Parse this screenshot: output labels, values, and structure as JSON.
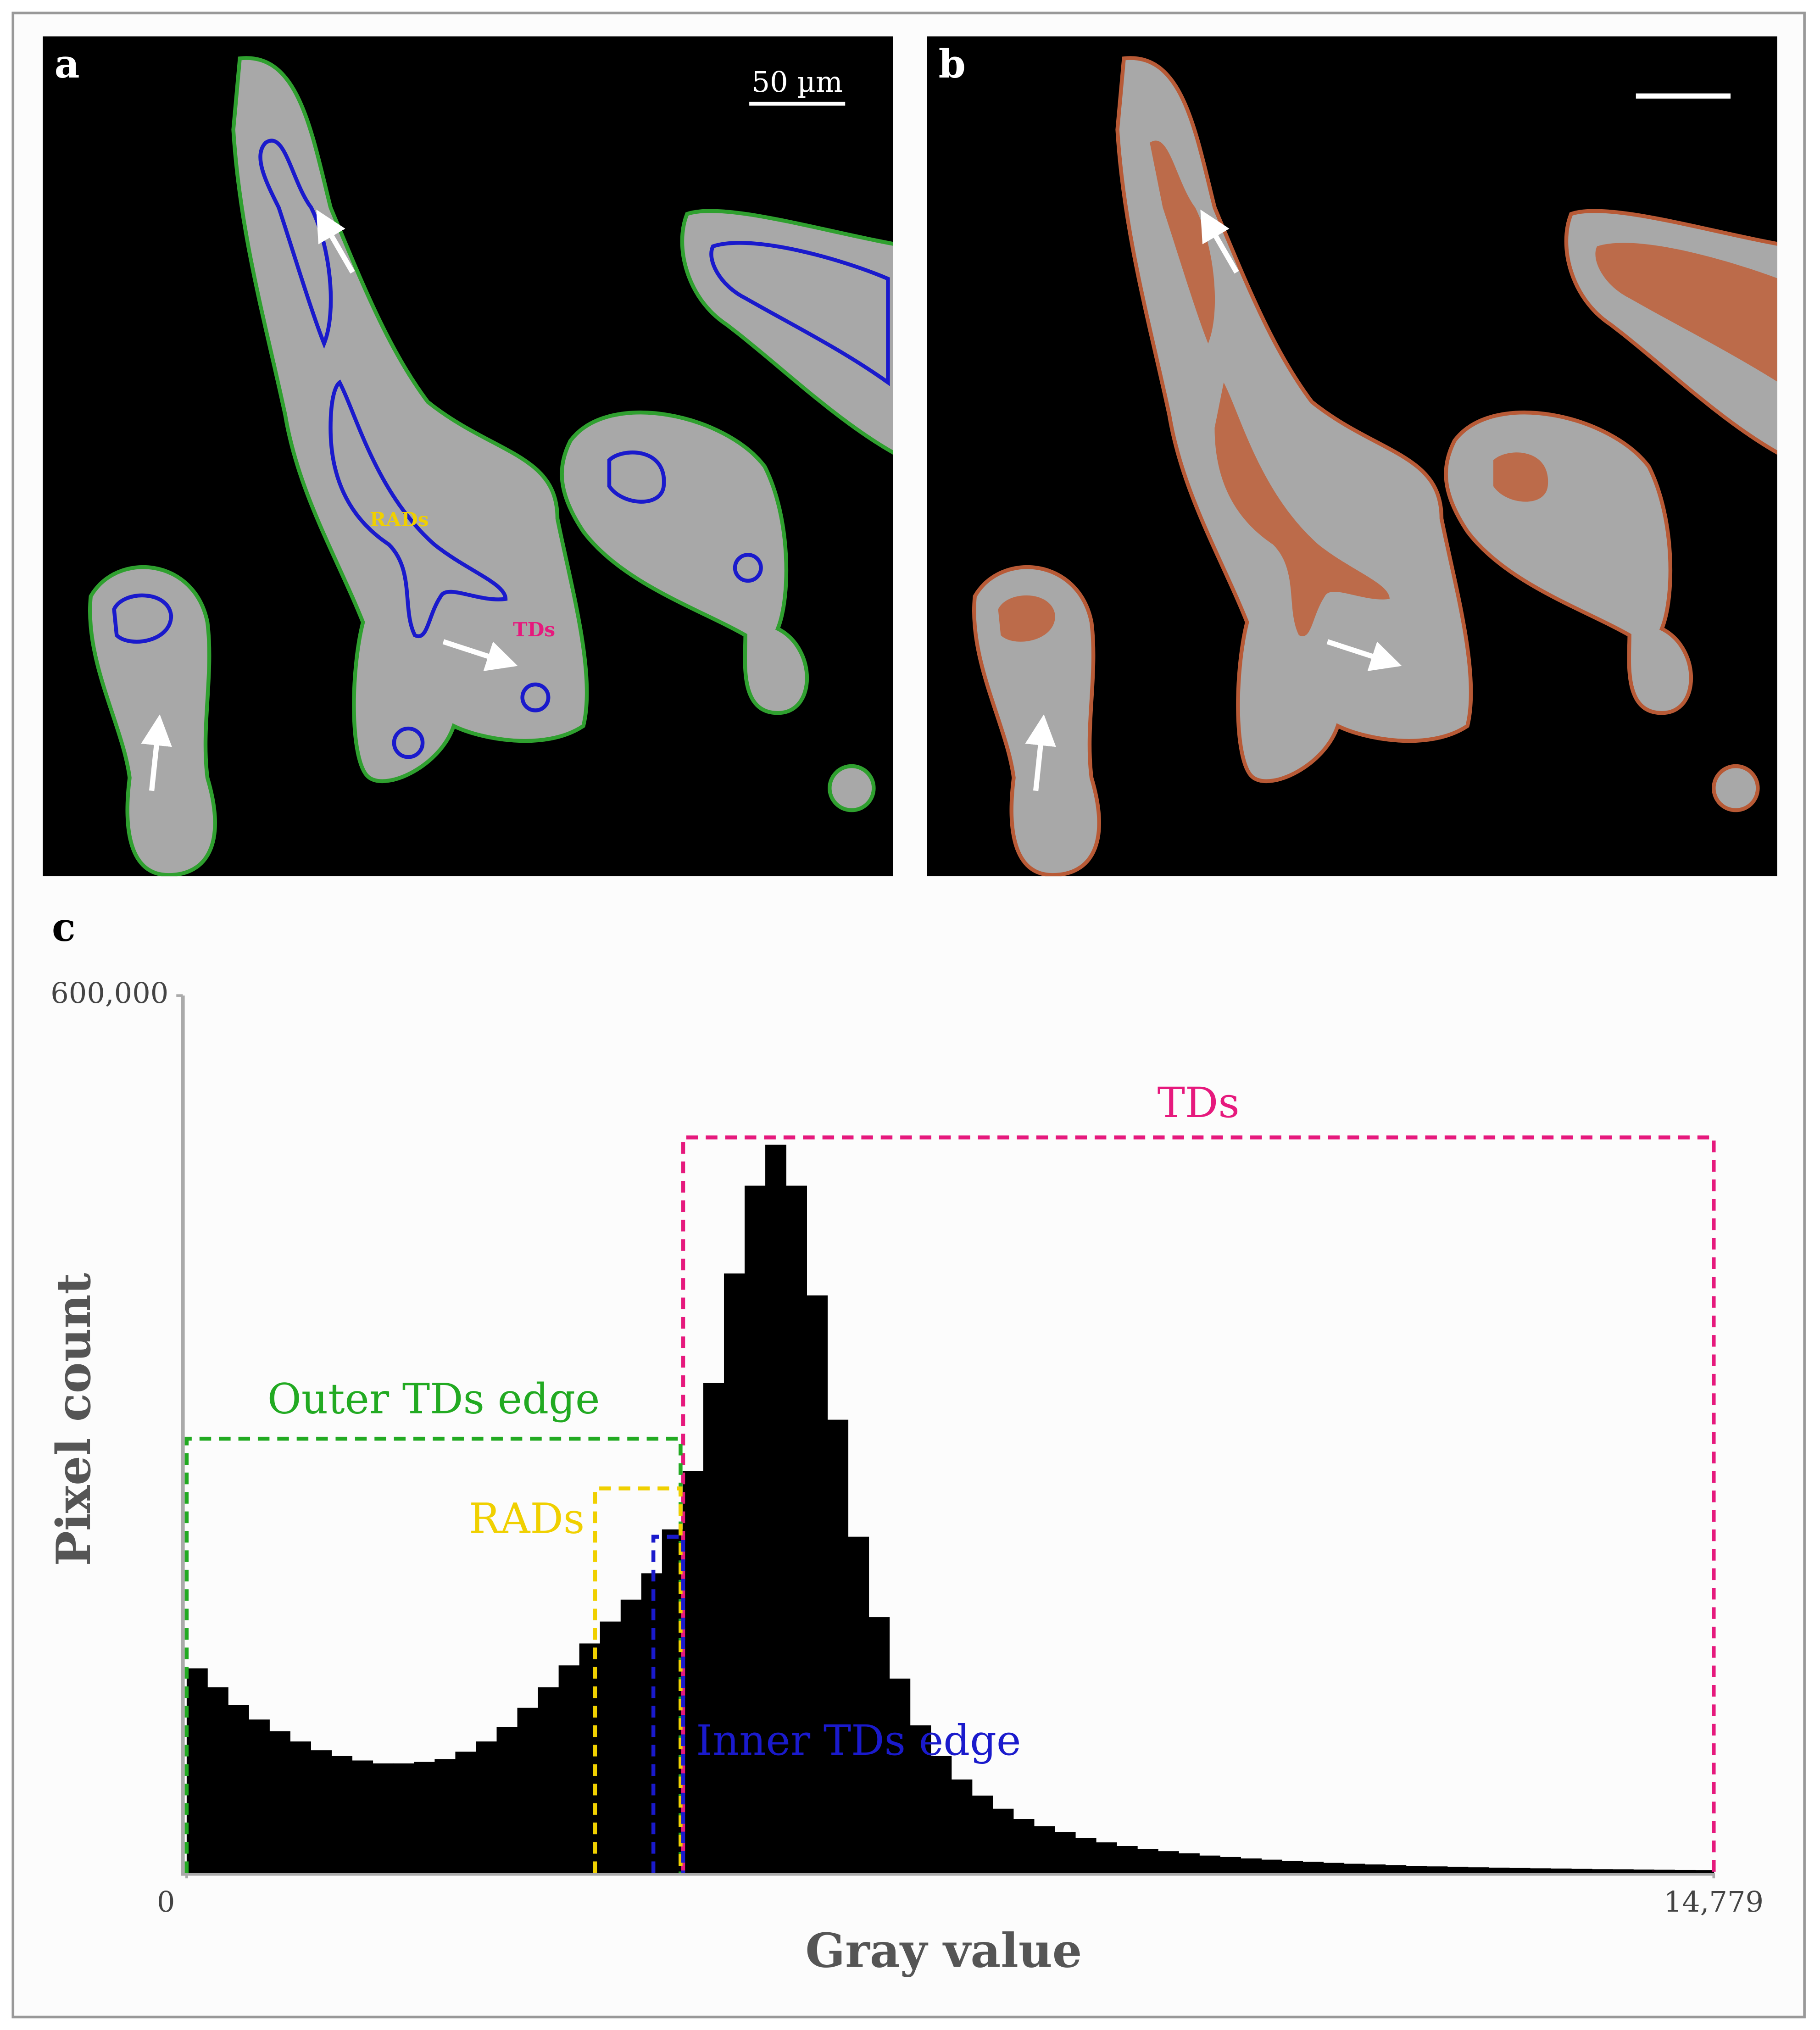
{
  "panels": [
    {
      "label": "a",
      "scale_bar": "50 µm",
      "labels": [
        "RADs",
        "TDs"
      ]
    },
    {
      "label": "b"
    }
  ],
  "chart_data": {
    "type": "histogram",
    "panel_label": "c",
    "x_label": "Gray value",
    "y_label": "Pixel count",
    "color": "#000000",
    "xlim": [
      0,
      14779
    ],
    "ylim": [
      0,
      600000
    ],
    "xticks": [
      0,
      {
        "value": 14779,
        "label": "14,779"
      }
    ],
    "yticks": [
      {
        "value": 600000,
        "label": "600,000"
      }
    ],
    "bins": [
      0,
      200,
      400,
      600,
      800,
      1000,
      1200,
      1400,
      1600,
      1800,
      2000,
      2200,
      2400,
      2600,
      2800,
      3000,
      3200,
      3400,
      3600,
      3800,
      4000,
      4200,
      4400,
      4600,
      4800,
      5000,
      5200,
      5400,
      5600,
      5800,
      6000,
      6200,
      6400,
      6600,
      6800,
      7000,
      7200,
      7400,
      7600,
      7800,
      8000,
      8200,
      8400,
      8600,
      8800,
      9000,
      9200,
      9400,
      9600,
      9800,
      10000,
      10200,
      10400,
      10600,
      10800,
      11000,
      11200,
      11400,
      11600,
      11800,
      12000,
      12200,
      12400,
      12600,
      12800,
      13000,
      13200,
      13400,
      13600,
      13800,
      14000,
      14200,
      14400,
      14600,
      14779
    ],
    "values": [
      140000,
      127000,
      115000,
      105000,
      97000,
      90000,
      84000,
      80000,
      77000,
      75000,
      75000,
      76000,
      78000,
      83000,
      90000,
      100000,
      113000,
      127000,
      142000,
      157000,
      172000,
      187000,
      205000,
      235000,
      275000,
      335000,
      410000,
      470000,
      498000,
      470000,
      395000,
      310000,
      230000,
      175000,
      133000,
      101000,
      80000,
      64000,
      53000,
      44000,
      37000,
      32000,
      28000,
      24000,
      21000,
      18500,
      16500,
      15000,
      13500,
      12000,
      11000,
      10000,
      9200,
      8400,
      7700,
      7000,
      6400,
      5900,
      5400,
      5000,
      4600,
      4300,
      4000,
      3700,
      3500,
      3300,
      3100,
      2900,
      2700,
      2600,
      2400,
      2300,
      2200,
      2100
    ],
    "annotations": [
      {
        "label": "TDs",
        "color": "#e6197d",
        "range": [
          4805,
          14779
        ],
        "top": 503000
      },
      {
        "label": "Outer TDs edge",
        "color": "#22aa22",
        "range": [
          0,
          4780
        ],
        "top": 297000
      },
      {
        "label": "RADs",
        "color": "#f0d000",
        "range": [
          3952,
          4780
        ],
        "top": 263000
      },
      {
        "label": "Inner TDs edge",
        "color": "#1a1acc",
        "range": [
          4517,
          4805
        ],
        "top": 230000
      }
    ]
  }
}
